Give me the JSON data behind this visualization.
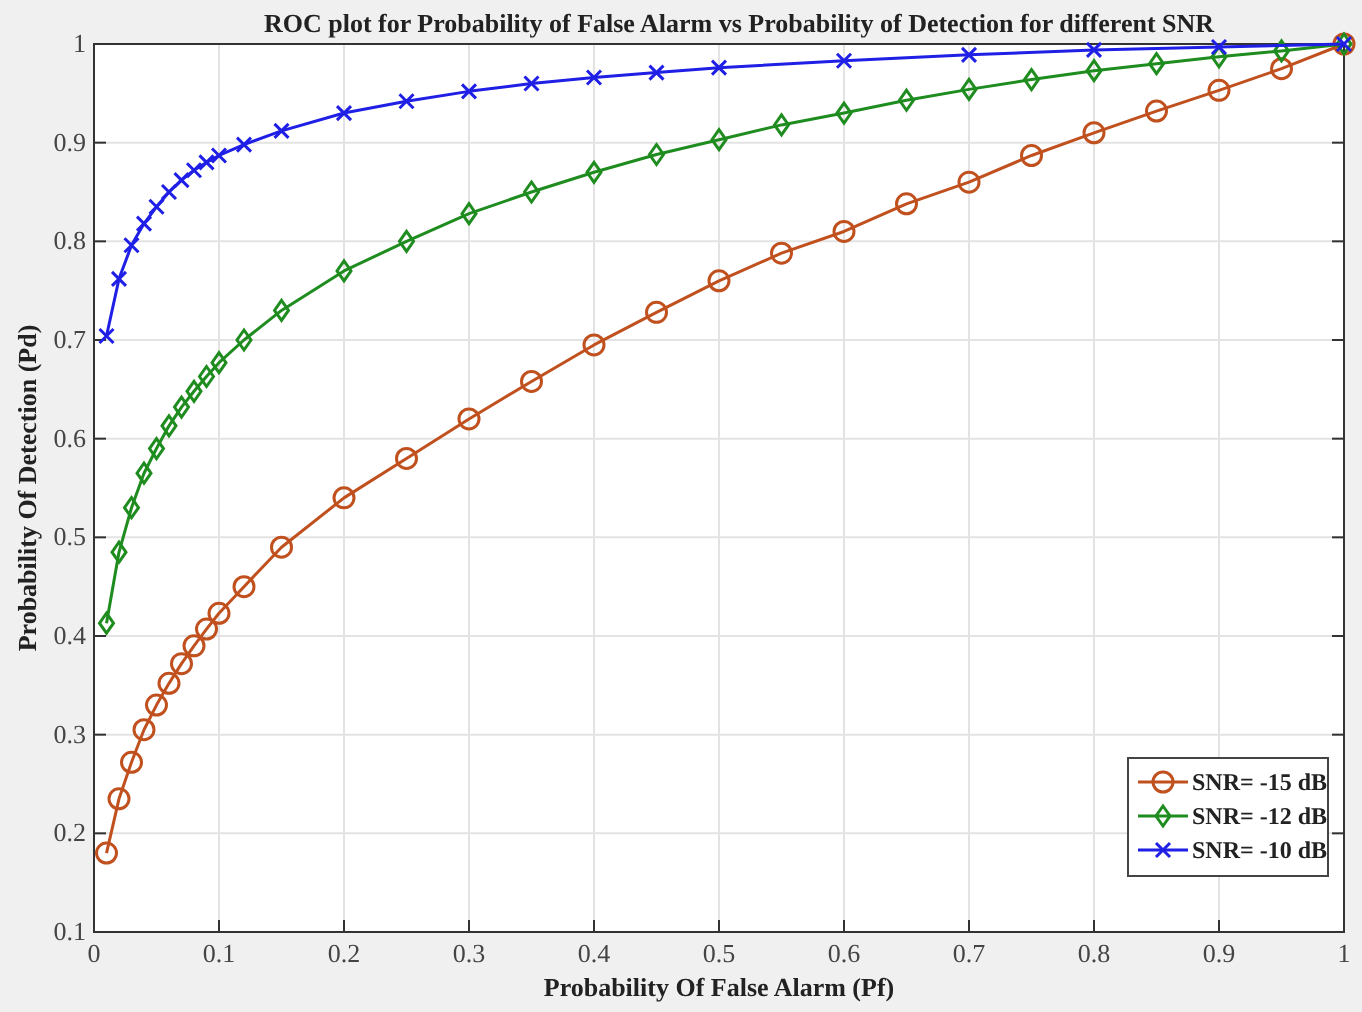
{
  "chart_data": {
    "type": "line",
    "title": "ROC plot for Probability of False Alarm vs Probability of Detection for different SNR",
    "xlabel": "Probability Of False Alarm (Pf)",
    "ylabel": "Probability Of Detection (Pd)",
    "xlim": [
      0,
      1
    ],
    "ylim": [
      0.1,
      1
    ],
    "xticks": [
      0,
      0.1,
      0.2,
      0.3,
      0.4,
      0.5,
      0.6,
      0.7,
      0.8,
      0.9,
      1
    ],
    "yticks": [
      0.1,
      0.2,
      0.3,
      0.4,
      0.5,
      0.6,
      0.7,
      0.8,
      0.9,
      1
    ],
    "grid": true,
    "legend": "bottom right",
    "series": [
      {
        "name": "SNR= -15 dB",
        "color": "#c0501e",
        "marker": "circle",
        "x": [
          0.01,
          0.02,
          0.03,
          0.04,
          0.05,
          0.06,
          0.07,
          0.08,
          0.09,
          0.1,
          0.12,
          0.15,
          0.2,
          0.25,
          0.3,
          0.35,
          0.4,
          0.45,
          0.5,
          0.55,
          0.6,
          0.65,
          0.7,
          0.75,
          0.8,
          0.85,
          0.9,
          0.95,
          1
        ],
        "values": [
          0.18,
          0.235,
          0.272,
          0.305,
          0.33,
          0.352,
          0.372,
          0.39,
          0.407,
          0.423,
          0.45,
          0.49,
          0.54,
          0.58,
          0.62,
          0.658,
          0.695,
          0.728,
          0.76,
          0.788,
          0.81,
          0.838,
          0.86,
          0.887,
          0.91,
          0.932,
          0.953,
          0.975,
          1
        ]
      },
      {
        "name": "SNR= -12 dB",
        "color": "#1e8c1e",
        "marker": "diamond",
        "x": [
          0.01,
          0.02,
          0.03,
          0.04,
          0.05,
          0.06,
          0.07,
          0.08,
          0.09,
          0.1,
          0.12,
          0.15,
          0.2,
          0.25,
          0.3,
          0.35,
          0.4,
          0.45,
          0.5,
          0.55,
          0.6,
          0.65,
          0.7,
          0.75,
          0.8,
          0.85,
          0.9,
          0.95,
          1
        ],
        "values": [
          0.413,
          0.485,
          0.53,
          0.565,
          0.59,
          0.613,
          0.632,
          0.648,
          0.663,
          0.677,
          0.7,
          0.73,
          0.77,
          0.8,
          0.828,
          0.85,
          0.87,
          0.888,
          0.903,
          0.918,
          0.93,
          0.943,
          0.954,
          0.964,
          0.973,
          0.98,
          0.987,
          0.993,
          1
        ]
      },
      {
        "name": "SNR= -10 dB",
        "color": "#1f1fe6",
        "marker": "cross",
        "x": [
          0.01,
          0.02,
          0.03,
          0.04,
          0.05,
          0.06,
          0.07,
          0.08,
          0.09,
          0.1,
          0.12,
          0.15,
          0.2,
          0.25,
          0.3,
          0.35,
          0.4,
          0.45,
          0.5,
          0.6,
          0.7,
          0.8,
          0.9,
          1
        ],
        "values": [
          0.704,
          0.762,
          0.796,
          0.818,
          0.835,
          0.85,
          0.862,
          0.872,
          0.88,
          0.887,
          0.898,
          0.912,
          0.93,
          0.942,
          0.952,
          0.96,
          0.966,
          0.971,
          0.976,
          0.983,
          0.989,
          0.994,
          0.997,
          1
        ]
      }
    ]
  }
}
